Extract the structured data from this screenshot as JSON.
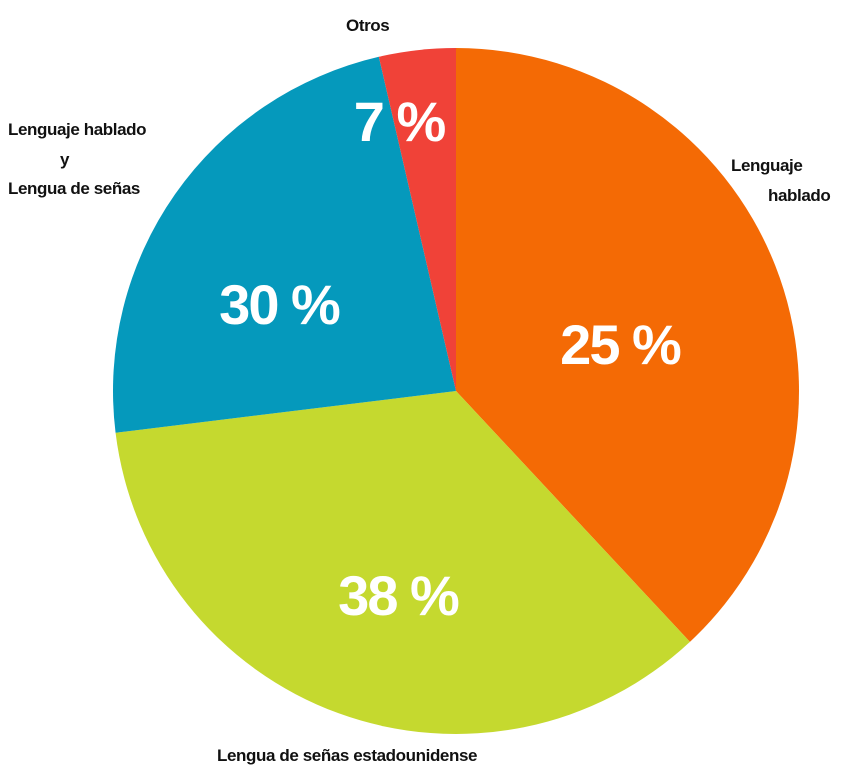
{
  "chart_data": {
    "type": "pie",
    "slices": [
      {
        "label_lines": [
          "Lenguaje",
          "hablado"
        ],
        "value": 25,
        "value_label": "25 %",
        "color": "#F46A05"
      },
      {
        "label_lines": [
          "Lengua de señas estadounidense"
        ],
        "value": 38,
        "value_label": "38 %",
        "color": "#C5D92F"
      },
      {
        "label_lines": [
          "Lenguaje hablado",
          "y",
          "Lengua de señas"
        ],
        "value": 30,
        "value_label": "30 %",
        "color": "#0599BC"
      },
      {
        "label_lines": [
          "Otros"
        ],
        "value": 7,
        "value_label": "7 %",
        "color": "#F04238"
      }
    ],
    "start": "12 o'clock",
    "direction": "clockwise"
  }
}
